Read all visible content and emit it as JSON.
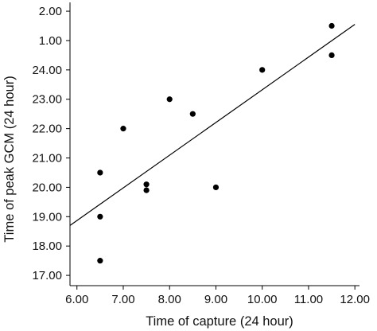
{
  "chart_data": {
    "type": "scatter",
    "xlabel": "Time of capture (24 hour)",
    "ylabel": "Time of peak GCM (24 hour)",
    "x_ticks": [
      "6.00",
      "7.00",
      "8.00",
      "9.00",
      "10.00",
      "11.00",
      "12.00"
    ],
    "x_tick_values": [
      6,
      7,
      8,
      9,
      10,
      11,
      12
    ],
    "y_ticks": [
      "17.00",
      "18.00",
      "19.00",
      "20.00",
      "21.00",
      "22.00",
      "23.00",
      "24.00",
      "1.00",
      "2.00"
    ],
    "y_tick_values": [
      17,
      18,
      19,
      20,
      21,
      22,
      23,
      24,
      25,
      26
    ],
    "xlim": [
      5.85,
      12.1
    ],
    "ylim": [
      16.65,
      26.3
    ],
    "points": [
      {
        "x": 6.5,
        "y": 20.5
      },
      {
        "x": 6.5,
        "y": 19.0
      },
      {
        "x": 6.5,
        "y": 17.5
      },
      {
        "x": 7.0,
        "y": 22.0
      },
      {
        "x": 7.5,
        "y": 20.1
      },
      {
        "x": 7.5,
        "y": 19.9
      },
      {
        "x": 8.0,
        "y": 23.0
      },
      {
        "x": 8.5,
        "y": 22.5
      },
      {
        "x": 9.0,
        "y": 20.0
      },
      {
        "x": 10.0,
        "y": 24.0
      },
      {
        "x": 11.5,
        "y": 25.5
      },
      {
        "x": 11.5,
        "y": 24.5
      }
    ],
    "trend_line": {
      "x": [
        5.85,
        12.0
      ],
      "y": [
        18.7,
        25.55
      ]
    },
    "grid": false,
    "legend": "none",
    "marker_color": "#000000"
  }
}
